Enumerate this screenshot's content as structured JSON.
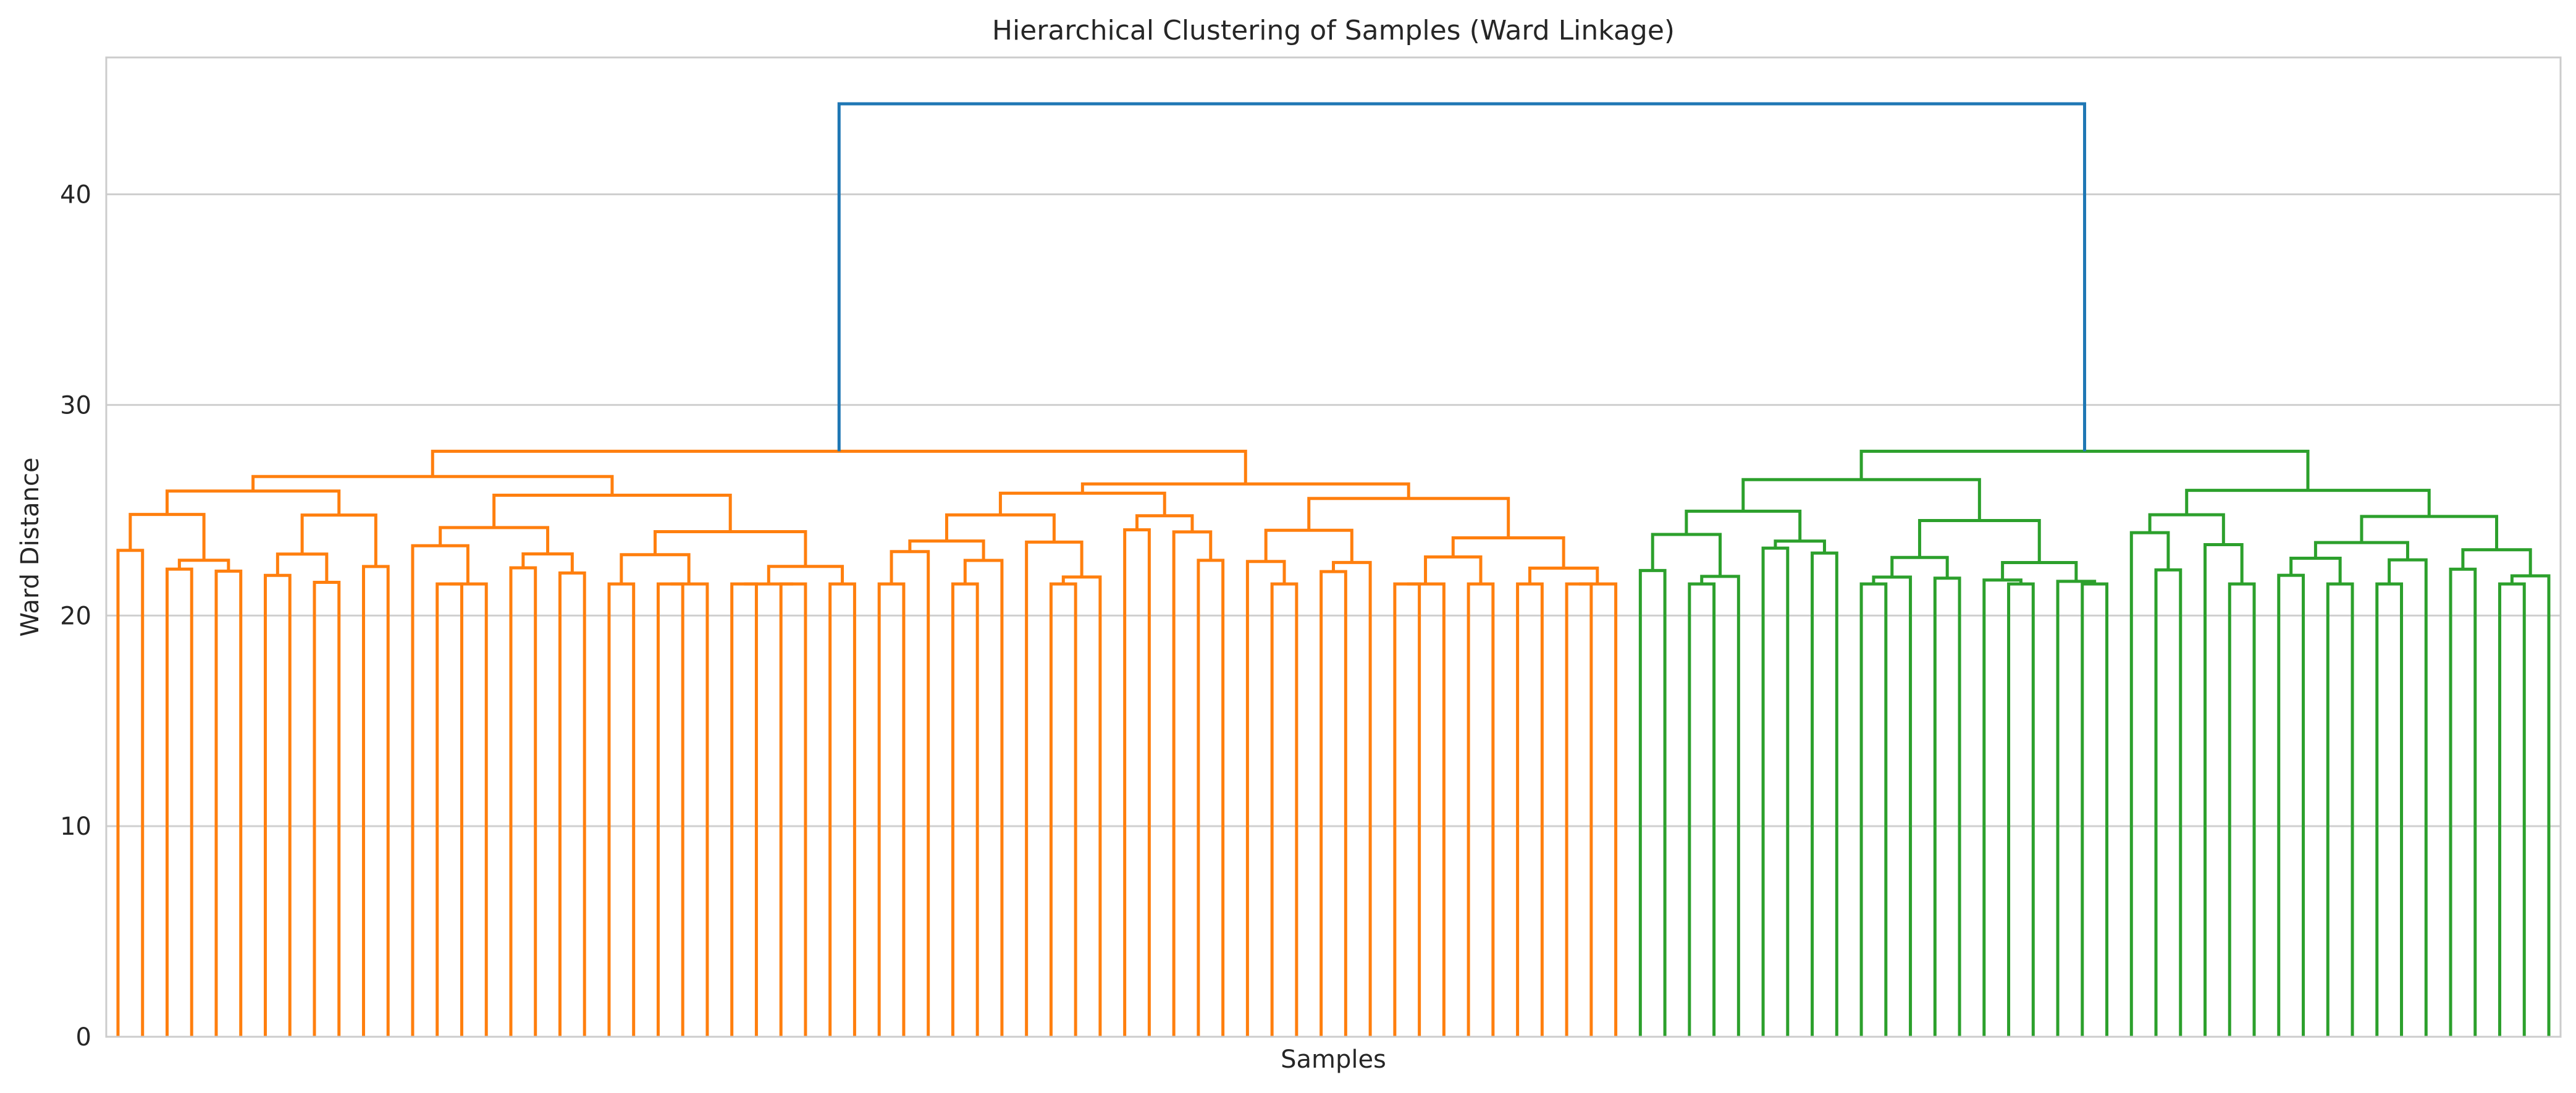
{
  "chart_data": {
    "type": "dendrogram",
    "title": "Hierarchical Clustering of Samples (Ward Linkage)",
    "xlabel": "Samples",
    "ylabel": "Ward Distance",
    "ylim": [
      0,
      46.5
    ],
    "yticks": [
      0,
      10,
      20,
      30,
      40
    ],
    "grid": "horizontal",
    "leaf_count": 100,
    "cluster_colors": {
      "orange_cluster": "#ff7f0e",
      "green_cluster": "#2ca02c",
      "root_link": "#1f77b4"
    },
    "root": {
      "height": 44.3
    },
    "clusters": [
      {
        "color": "orange_cluster",
        "leaves": 62,
        "height": 27.8
      },
      {
        "color": "green_cluster",
        "leaves": 38,
        "height": 27.8
      }
    ]
  }
}
